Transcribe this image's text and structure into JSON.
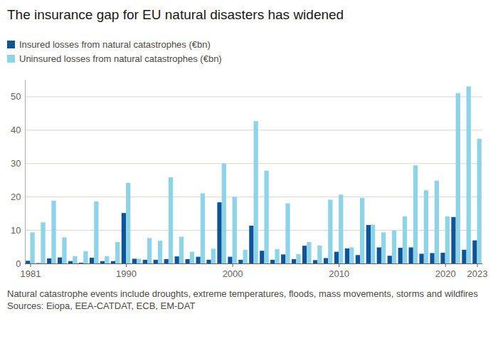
{
  "chart_data": {
    "type": "bar",
    "title": "The insurance gap for EU natural disasters has widened",
    "notes": [
      "Natural catastrophe events include droughts, extreme temperatures, floods, mass movements, storms and wildfires",
      "Sources: Eiopa, EEA-CATDAT, ECB, EM-DAT"
    ],
    "categories": [
      "1981",
      null,
      null,
      null,
      null,
      null,
      null,
      null,
      null,
      "1990",
      null,
      null,
      null,
      null,
      null,
      null,
      null,
      null,
      null,
      "2000",
      null,
      null,
      null,
      null,
      null,
      null,
      null,
      null,
      null,
      "2010",
      null,
      null,
      null,
      null,
      null,
      null,
      null,
      null,
      null,
      "2020",
      null,
      null,
      "2023"
    ],
    "series": [
      {
        "name": "Insured losses from natural catastrophes (€bn)",
        "color": "#0f5499",
        "values": [
          0.8,
          0.1,
          1.5,
          1.8,
          0.7,
          0.2,
          1.7,
          0.7,
          0.7,
          15.1,
          1.4,
          1.1,
          1.1,
          1.3,
          2.1,
          1.3,
          2.0,
          1.1,
          18.3,
          2.0,
          1.1,
          11.3,
          3.8,
          1.1,
          2.7,
          1.3,
          5.3,
          1.0,
          1.6,
          3.5,
          4.5,
          2.5,
          11.5,
          4.8,
          2.3,
          4.7,
          4.8,
          2.9,
          3.1,
          3.2,
          13.9,
          4.1,
          6.9
        ]
      },
      {
        "name": "Uninsured losses from natural catastrophes (€bn)",
        "color": "#8ed4e8",
        "values": [
          9.3,
          12.3,
          18.8,
          7.8,
          2.2,
          3.7,
          18.6,
          2.2,
          6.4,
          24.1,
          1.4,
          7.6,
          6.8,
          25.8,
          8.0,
          3.5,
          21.0,
          4.4,
          29.9,
          19.9,
          4.1,
          42.6,
          27.8,
          4.3,
          18.0,
          2.8,
          6.4,
          5.4,
          19.1,
          20.6,
          4.8,
          19.6,
          11.6,
          9.3,
          9.9,
          14.1,
          29.4,
          21.9,
          24.8,
          14.1,
          51.0,
          53.0,
          37.3
        ]
      }
    ],
    "ylim": [
      0,
      55
    ],
    "yticks": [
      0,
      10,
      20,
      30,
      40,
      50
    ],
    "grid": true
  }
}
